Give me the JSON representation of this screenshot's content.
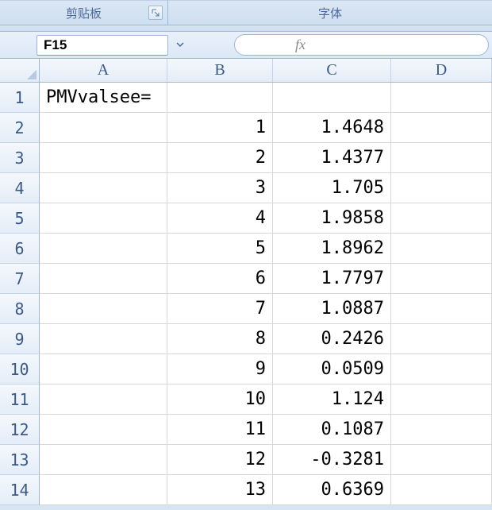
{
  "ribbon": {
    "group_clipboard_label": "剪贴板",
    "group_font_label": "字体"
  },
  "formula_bar": {
    "name_box": "F15",
    "fx_label": "fx",
    "formula_value": ""
  },
  "grid": {
    "columns": [
      "A",
      "B",
      "C",
      "D"
    ],
    "rows": [
      {
        "n": "1",
        "A": "PMVvalsee=",
        "B": "",
        "C": ""
      },
      {
        "n": "2",
        "A": "",
        "B": "1",
        "C": "1.4648"
      },
      {
        "n": "3",
        "A": "",
        "B": "2",
        "C": "1.4377"
      },
      {
        "n": "4",
        "A": "",
        "B": "3",
        "C": "1.705"
      },
      {
        "n": "5",
        "A": "",
        "B": "4",
        "C": "1.9858"
      },
      {
        "n": "6",
        "A": "",
        "B": "5",
        "C": "1.8962"
      },
      {
        "n": "7",
        "A": "",
        "B": "6",
        "C": "1.7797"
      },
      {
        "n": "8",
        "A": "",
        "B": "7",
        "C": "1.0887"
      },
      {
        "n": "9",
        "A": "",
        "B": "8",
        "C": "0.2426"
      },
      {
        "n": "10",
        "A": "",
        "B": "9",
        "C": "0.0509"
      },
      {
        "n": "11",
        "A": "",
        "B": "10",
        "C": "1.124"
      },
      {
        "n": "12",
        "A": "",
        "B": "11",
        "C": "0.1087"
      },
      {
        "n": "13",
        "A": "",
        "B": "12",
        "C": "-0.3281"
      },
      {
        "n": "14",
        "A": "",
        "B": "13",
        "C": "0.6369"
      }
    ]
  },
  "colors": {
    "ribbon_bg_top": "#dbe7f4",
    "ribbon_bg_bottom": "#cfdff0",
    "border": "#9bb7d9",
    "header_text": "#3b5a86",
    "cell_border": "#d8d8d8"
  }
}
